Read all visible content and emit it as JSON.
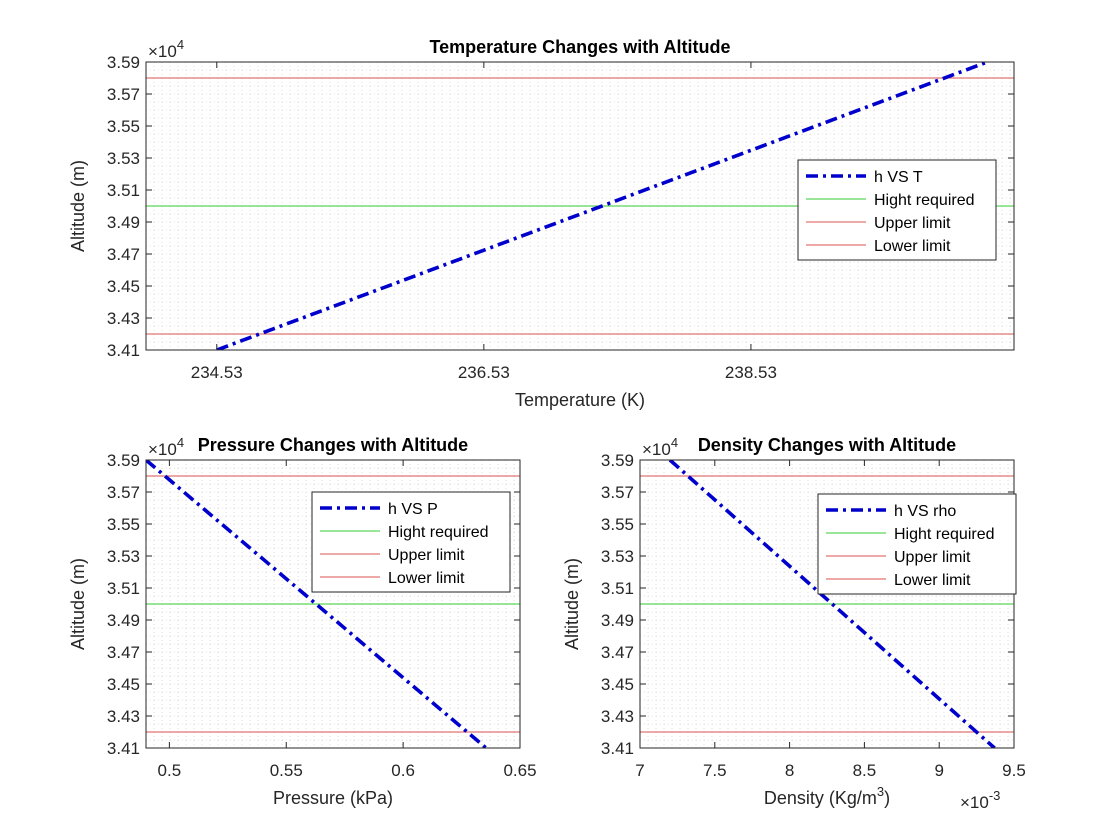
{
  "chart_data": [
    {
      "type": "line",
      "title": "Temperature Changes with Altitude",
      "xlabel": "Temperature (K)",
      "ylabel": "Altitude (m)",
      "y_exponent_label": "×10",
      "y_exponent": "4",
      "x_exponent_label": "",
      "x_exponent": "",
      "xlim": [
        234.0,
        240.5
      ],
      "ylim": [
        3.41,
        3.59
      ],
      "xticks": [
        234.53,
        236.53,
        238.53
      ],
      "xtick_labels": [
        "234.53",
        "236.53",
        "238.53"
      ],
      "yticks": [
        3.41,
        3.43,
        3.45,
        3.47,
        3.49,
        3.51,
        3.53,
        3.55,
        3.57,
        3.59
      ],
      "ytick_labels": [
        "3.41",
        "3.43",
        "3.45",
        "3.47",
        "3.49",
        "3.51",
        "3.53",
        "3.55",
        "3.57",
        "3.59"
      ],
      "grid": "on, minor dotted",
      "legend_position": "right",
      "series": [
        {
          "name": "h VS T",
          "style": "dashdot",
          "color": "#0000cc",
          "x": [
            234.53,
            240.3
          ],
          "y": [
            3.41,
            3.59
          ]
        },
        {
          "name": "Hight required",
          "style": "solid",
          "color": "#33cc33",
          "x": [
            234.0,
            240.5
          ],
          "y": [
            3.5,
            3.5
          ]
        },
        {
          "name": "Upper limit",
          "style": "solid",
          "color": "#d9534f",
          "x": [
            234.0,
            240.5
          ],
          "y": [
            3.58,
            3.58
          ]
        },
        {
          "name": "Lower limit",
          "style": "solid",
          "color": "#d9534f",
          "x": [
            234.0,
            240.5
          ],
          "y": [
            3.42,
            3.42
          ]
        }
      ]
    },
    {
      "type": "line",
      "title": "Pressure Changes with Altitude",
      "xlabel": "Pressure (kPa)",
      "ylabel": "Altitude (m)",
      "y_exponent_label": "×10",
      "y_exponent": "4",
      "x_exponent_label": "",
      "x_exponent": "",
      "xlim": [
        0.49,
        0.65
      ],
      "ylim": [
        3.41,
        3.59
      ],
      "xticks": [
        0.5,
        0.55,
        0.6,
        0.65
      ],
      "xtick_labels": [
        "0.5",
        "0.55",
        "0.6",
        "0.65"
      ],
      "yticks": [
        3.41,
        3.43,
        3.45,
        3.47,
        3.49,
        3.51,
        3.53,
        3.55,
        3.57,
        3.59
      ],
      "ytick_labels": [
        "3.41",
        "3.43",
        "3.45",
        "3.47",
        "3.49",
        "3.51",
        "3.53",
        "3.55",
        "3.57",
        "3.59"
      ],
      "grid": "on, minor dotted",
      "legend_position": "top-right",
      "series": [
        {
          "name": "h VS P",
          "style": "dashdot",
          "color": "#0000cc",
          "x": [
            0.49,
            0.6355
          ],
          "y": [
            3.59,
            3.41
          ]
        },
        {
          "name": "Hight required",
          "style": "solid",
          "color": "#33cc33",
          "x": [
            0.49,
            0.65
          ],
          "y": [
            3.5,
            3.5
          ]
        },
        {
          "name": "Upper limit",
          "style": "solid",
          "color": "#d9534f",
          "x": [
            0.49,
            0.65
          ],
          "y": [
            3.58,
            3.58
          ]
        },
        {
          "name": "Lower limit",
          "style": "solid",
          "color": "#d9534f",
          "x": [
            0.49,
            0.65
          ],
          "y": [
            3.42,
            3.42
          ]
        }
      ]
    },
    {
      "type": "line",
      "title": "Density Changes with Altitude",
      "xlabel": "Density (Kg/m",
      "xlabel_sup": "3",
      "xlabel_end": ")",
      "ylabel": "Altitude (m)",
      "y_exponent_label": "×10",
      "y_exponent": "4",
      "x_exponent_label": "×10",
      "x_exponent": "-3",
      "xlim": [
        7.0,
        9.5
      ],
      "ylim": [
        3.41,
        3.59
      ],
      "xticks": [
        7.0,
        7.5,
        8.0,
        8.5,
        9.0,
        9.5
      ],
      "xtick_labels": [
        "7",
        "7.5",
        "8",
        "8.5",
        "9",
        "9.5"
      ],
      "yticks": [
        3.41,
        3.43,
        3.45,
        3.47,
        3.49,
        3.51,
        3.53,
        3.55,
        3.57,
        3.59
      ],
      "ytick_labels": [
        "3.41",
        "3.43",
        "3.45",
        "3.47",
        "3.49",
        "3.51",
        "3.53",
        "3.55",
        "3.57",
        "3.59"
      ],
      "grid": "on, minor dotted",
      "legend_position": "top-right",
      "series": [
        {
          "name": "h VS rho",
          "style": "dashdot",
          "color": "#0000cc",
          "x": [
            7.2,
            9.37
          ],
          "y": [
            3.59,
            3.41
          ]
        },
        {
          "name": "Hight required",
          "style": "solid",
          "color": "#33cc33",
          "x": [
            7.0,
            9.5
          ],
          "y": [
            3.5,
            3.5
          ]
        },
        {
          "name": "Upper limit",
          "style": "solid",
          "color": "#d9534f",
          "x": [
            7.0,
            9.5
          ],
          "y": [
            3.58,
            3.58
          ]
        },
        {
          "name": "Lower limit",
          "style": "solid",
          "color": "#d9534f",
          "x": [
            7.0,
            9.5
          ],
          "y": [
            3.42,
            3.42
          ]
        }
      ]
    }
  ]
}
